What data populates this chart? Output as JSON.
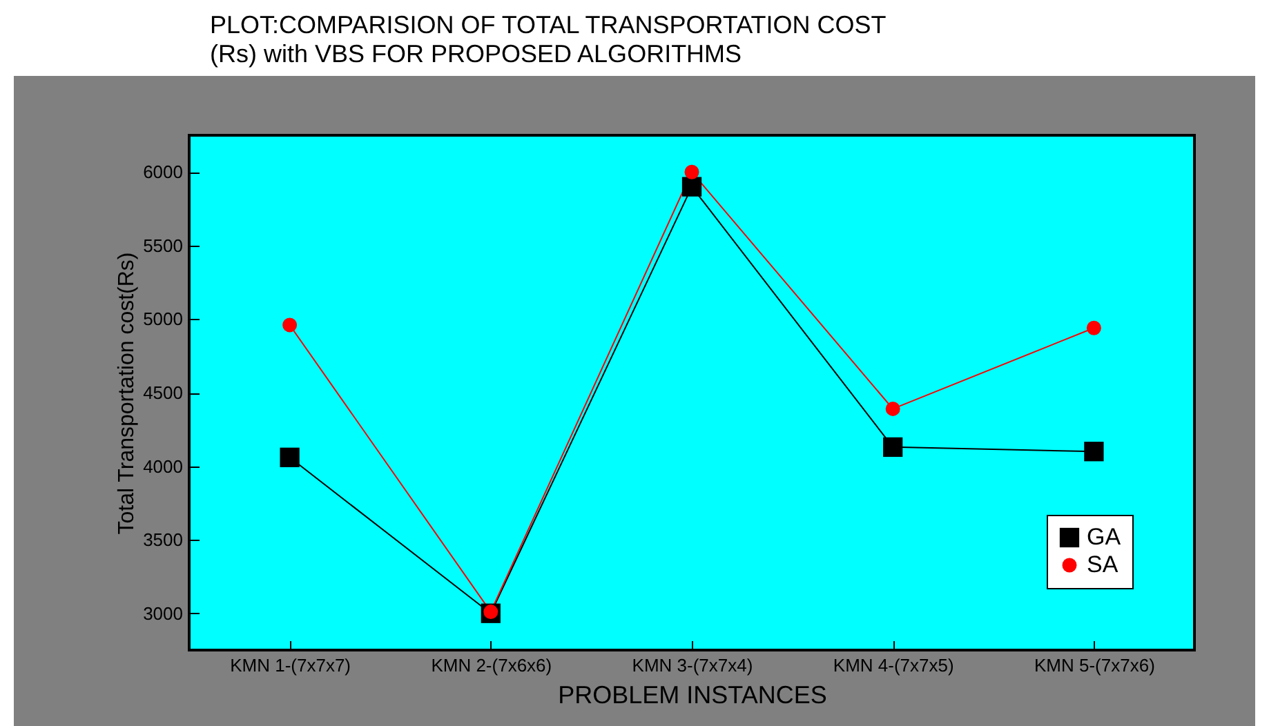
{
  "chart_data": {
    "type": "line",
    "title": "PLOT:COMPARISION OF TOTAL TRANSPORTATION COST (Rs) with VBS FOR PROPOSED ALGORITHMS",
    "xlabel": "PROBLEM INSTANCES",
    "ylabel": "Total Transportation cost(Rs)",
    "categories": [
      "KMN 1-(7x7x7)",
      "KMN 2-(7x6x6)",
      "KMN 3-(7x7x4)",
      "KMN 4-(7x7x5)",
      "KMN 5-(7x7x6)"
    ],
    "series": [
      {
        "name": "GA",
        "color": "#000000",
        "marker": "square",
        "values": [
          4060,
          3000,
          5900,
          4130,
          4100
        ]
      },
      {
        "name": "SA",
        "color": "#ff0000",
        "marker": "circle",
        "values": [
          4960,
          3010,
          6000,
          4390,
          4940
        ]
      }
    ],
    "ylim": [
      2750,
      6250
    ],
    "yticks": [
      3000,
      3500,
      4000,
      4500,
      5000,
      5500,
      6000
    ],
    "grid": false,
    "legend": "bottom right",
    "line_style": "solid"
  }
}
